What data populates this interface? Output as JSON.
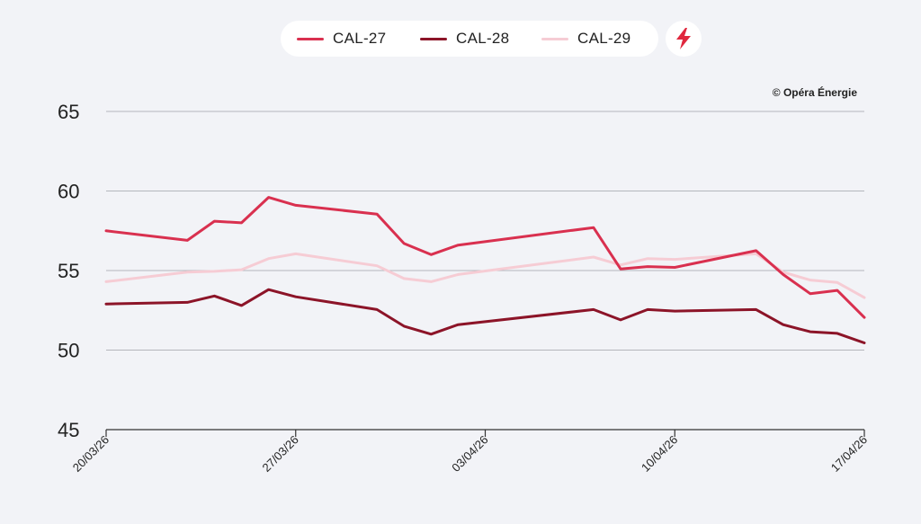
{
  "legend": {
    "items": [
      {
        "label": "CAL-27",
        "color": "#d9304f"
      },
      {
        "label": "CAL-28",
        "color": "#8c1428"
      },
      {
        "label": "CAL-29",
        "color": "#f6ccd4"
      }
    ],
    "flash_icon": "lightning-bolt-icon",
    "flash_color": "#e0283e"
  },
  "credit": "© Opéra Énergie",
  "chart_data": {
    "type": "line",
    "title": "",
    "xlabel": "",
    "ylabel": "",
    "ylim": [
      45,
      65
    ],
    "yticks": [
      65,
      60,
      55,
      50,
      45
    ],
    "xlim": [
      0,
      28
    ],
    "xticks": [
      {
        "x": 0,
        "label": "20/03/26"
      },
      {
        "x": 7,
        "label": "27/03/26"
      },
      {
        "x": 14,
        "label": "03/04/26"
      },
      {
        "x": 21,
        "label": "10/04/26"
      },
      {
        "x": 28,
        "label": "17/04/26"
      }
    ],
    "grid": true,
    "series": [
      {
        "name": "CAL-28",
        "color": "#8c1428",
        "x": [
          0,
          3,
          4,
          5,
          6,
          7,
          10,
          11,
          12,
          13,
          18,
          19,
          20,
          21,
          24,
          25,
          26,
          27,
          28
        ],
        "values": [
          52.9,
          53.0,
          53.4,
          52.8,
          53.8,
          53.35,
          52.55,
          51.5,
          51.0,
          51.6,
          52.55,
          51.9,
          52.55,
          52.45,
          52.55,
          51.6,
          51.15,
          51.05,
          50.45
        ]
      },
      {
        "name": "CAL-29",
        "color": "#f6ccd4",
        "x": [
          0,
          3,
          4,
          5,
          6,
          7,
          10,
          11,
          12,
          13,
          18,
          19,
          20,
          21,
          24,
          25,
          26,
          27,
          28
        ],
        "values": [
          54.3,
          54.9,
          54.95,
          55.05,
          55.75,
          56.05,
          55.3,
          54.5,
          54.3,
          54.75,
          55.85,
          55.35,
          55.75,
          55.7,
          56.05,
          54.9,
          54.4,
          54.25,
          53.3
        ]
      },
      {
        "name": "CAL-27",
        "color": "#d9304f",
        "x": [
          0,
          3,
          4,
          5,
          6,
          7,
          10,
          11,
          12,
          13,
          18,
          19,
          20,
          21,
          24,
          25,
          26,
          27,
          28
        ],
        "values": [
          57.5,
          56.9,
          58.1,
          58.0,
          59.6,
          59.1,
          58.55,
          56.7,
          56.0,
          56.6,
          57.7,
          55.1,
          55.25,
          55.2,
          56.25,
          54.75,
          53.55,
          53.75,
          52.05
        ]
      }
    ]
  }
}
